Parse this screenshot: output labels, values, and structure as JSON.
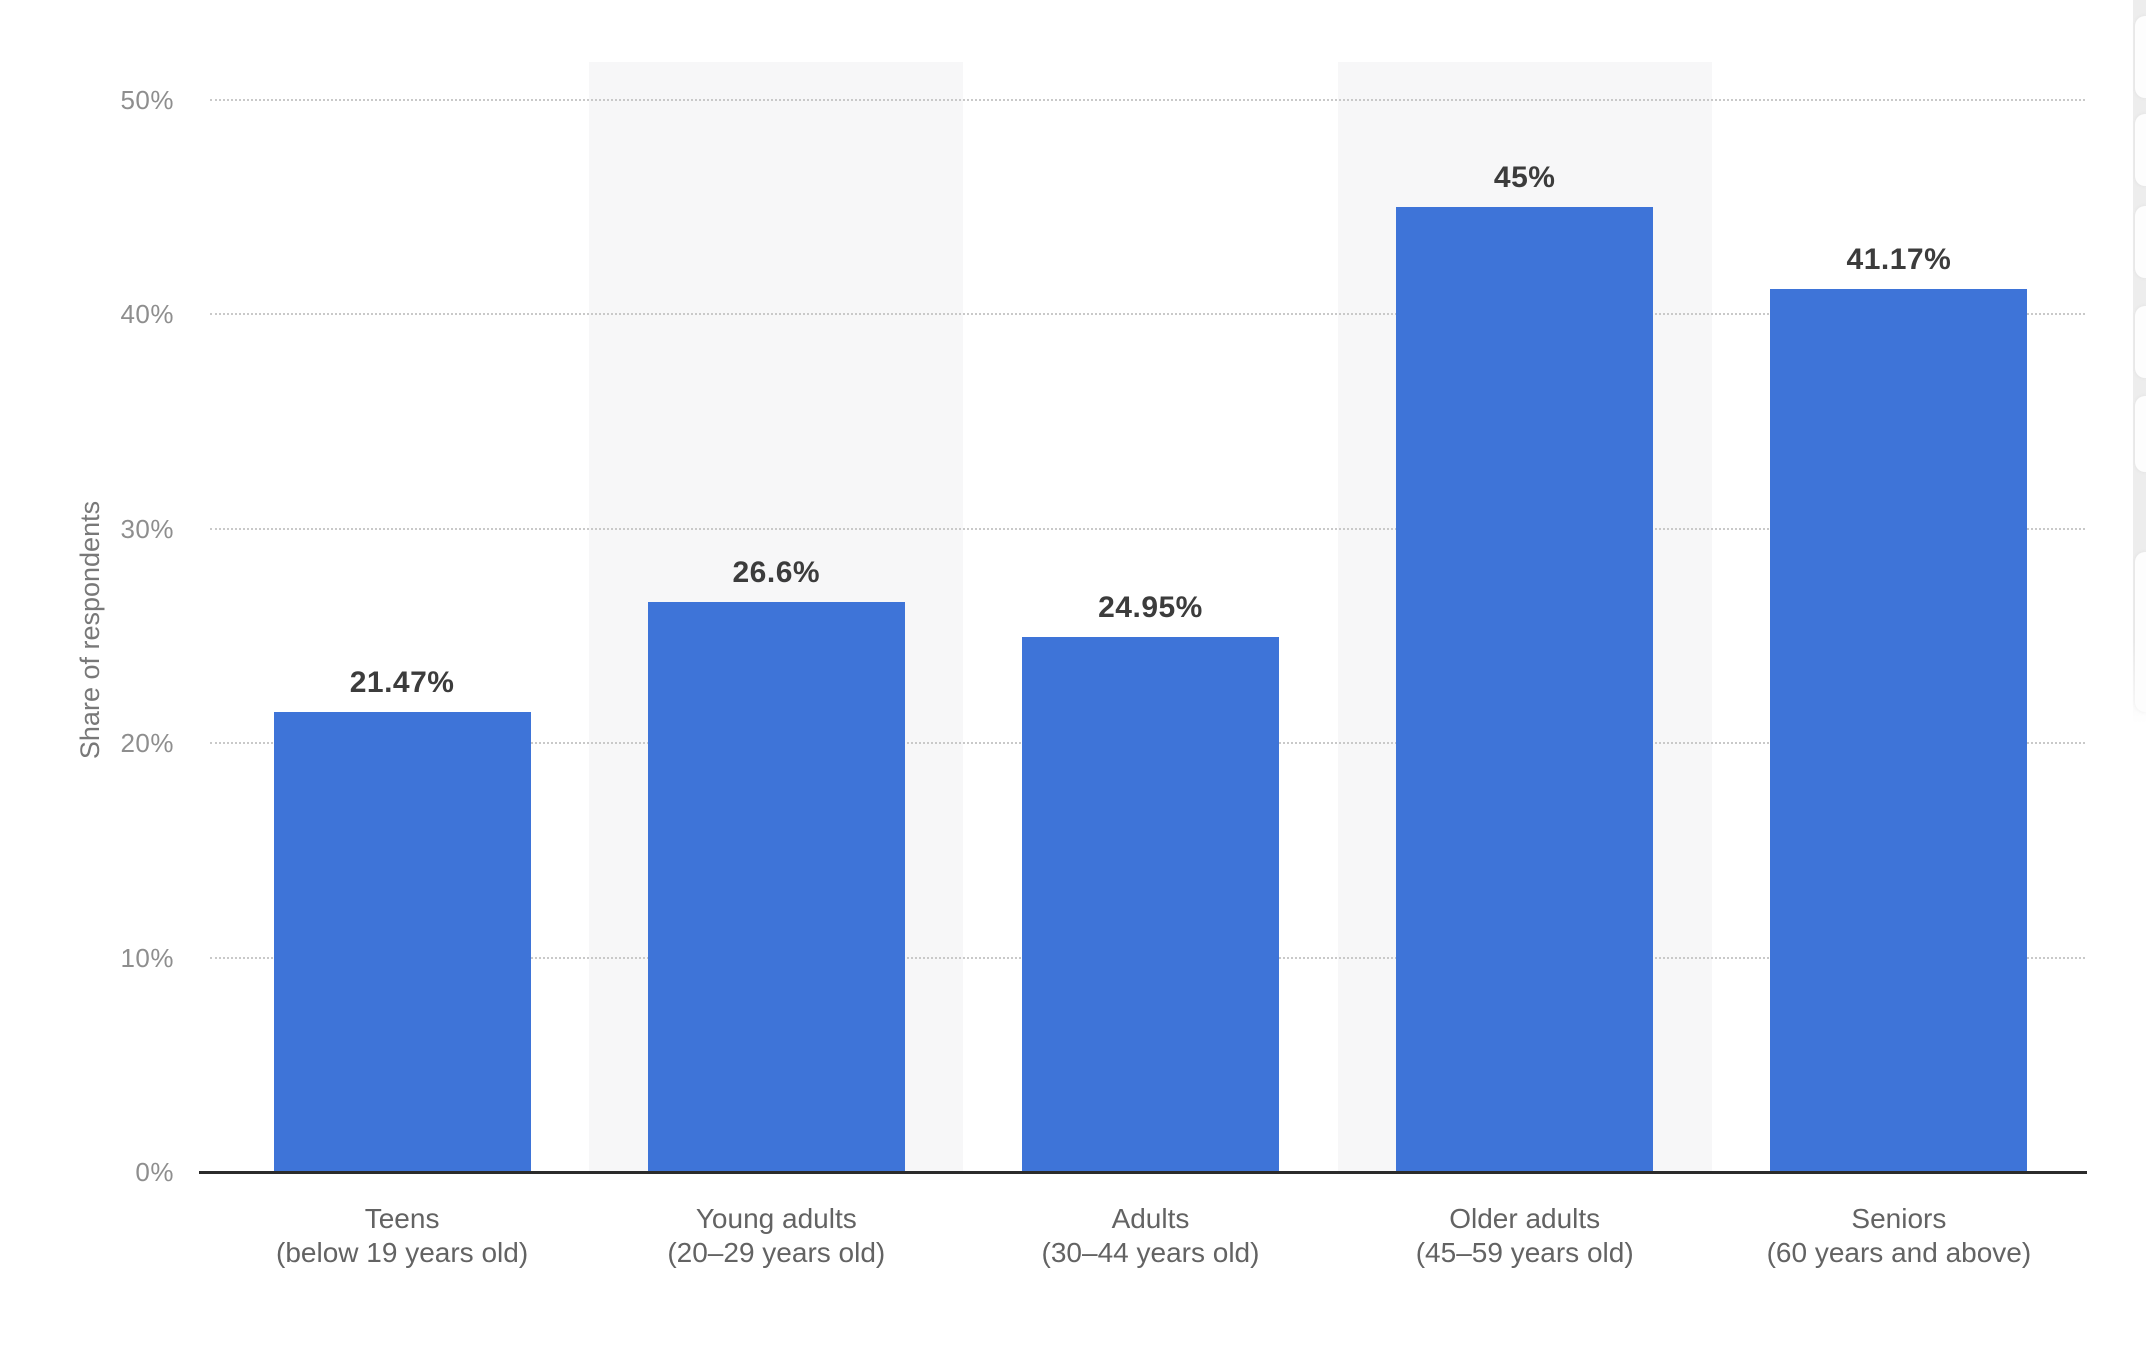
{
  "chart_data": {
    "type": "bar",
    "title": "",
    "ylabel": "Share of respondents",
    "xlabel": "",
    "categories": [
      {
        "line1": "Teens",
        "line2": "(below 19 years old)"
      },
      {
        "line1": "Young adults",
        "line2": "(20–29 years old)"
      },
      {
        "line1": "Adults",
        "line2": "(30–44 years old)"
      },
      {
        "line1": "Older adults",
        "line2": "(45–59 years old)"
      },
      {
        "line1": "Seniors",
        "line2": "(60 years and above)"
      }
    ],
    "values": [
      21.47,
      26.6,
      24.95,
      45,
      41.17
    ],
    "value_labels": [
      "21.47%",
      "26.6%",
      "24.95%",
      "45%",
      "41.17%"
    ],
    "yticks": [
      {
        "value": 0,
        "label": "0%"
      },
      {
        "value": 10,
        "label": "10%"
      },
      {
        "value": 20,
        "label": "20%"
      },
      {
        "value": 30,
        "label": "30%"
      },
      {
        "value": 40,
        "label": "40%"
      },
      {
        "value": 50,
        "label": "50%"
      }
    ],
    "ylim": [
      0,
      50
    ],
    "grid": "horizontal-dotted",
    "legend": "none",
    "bar_color": "#3E74D8",
    "band_color": "#F7F7F8",
    "banded_column_indexes": [
      1,
      3
    ]
  },
  "side_toolbar": {
    "description": "clipped floating button fragments at right edge",
    "segment_count": 6
  }
}
